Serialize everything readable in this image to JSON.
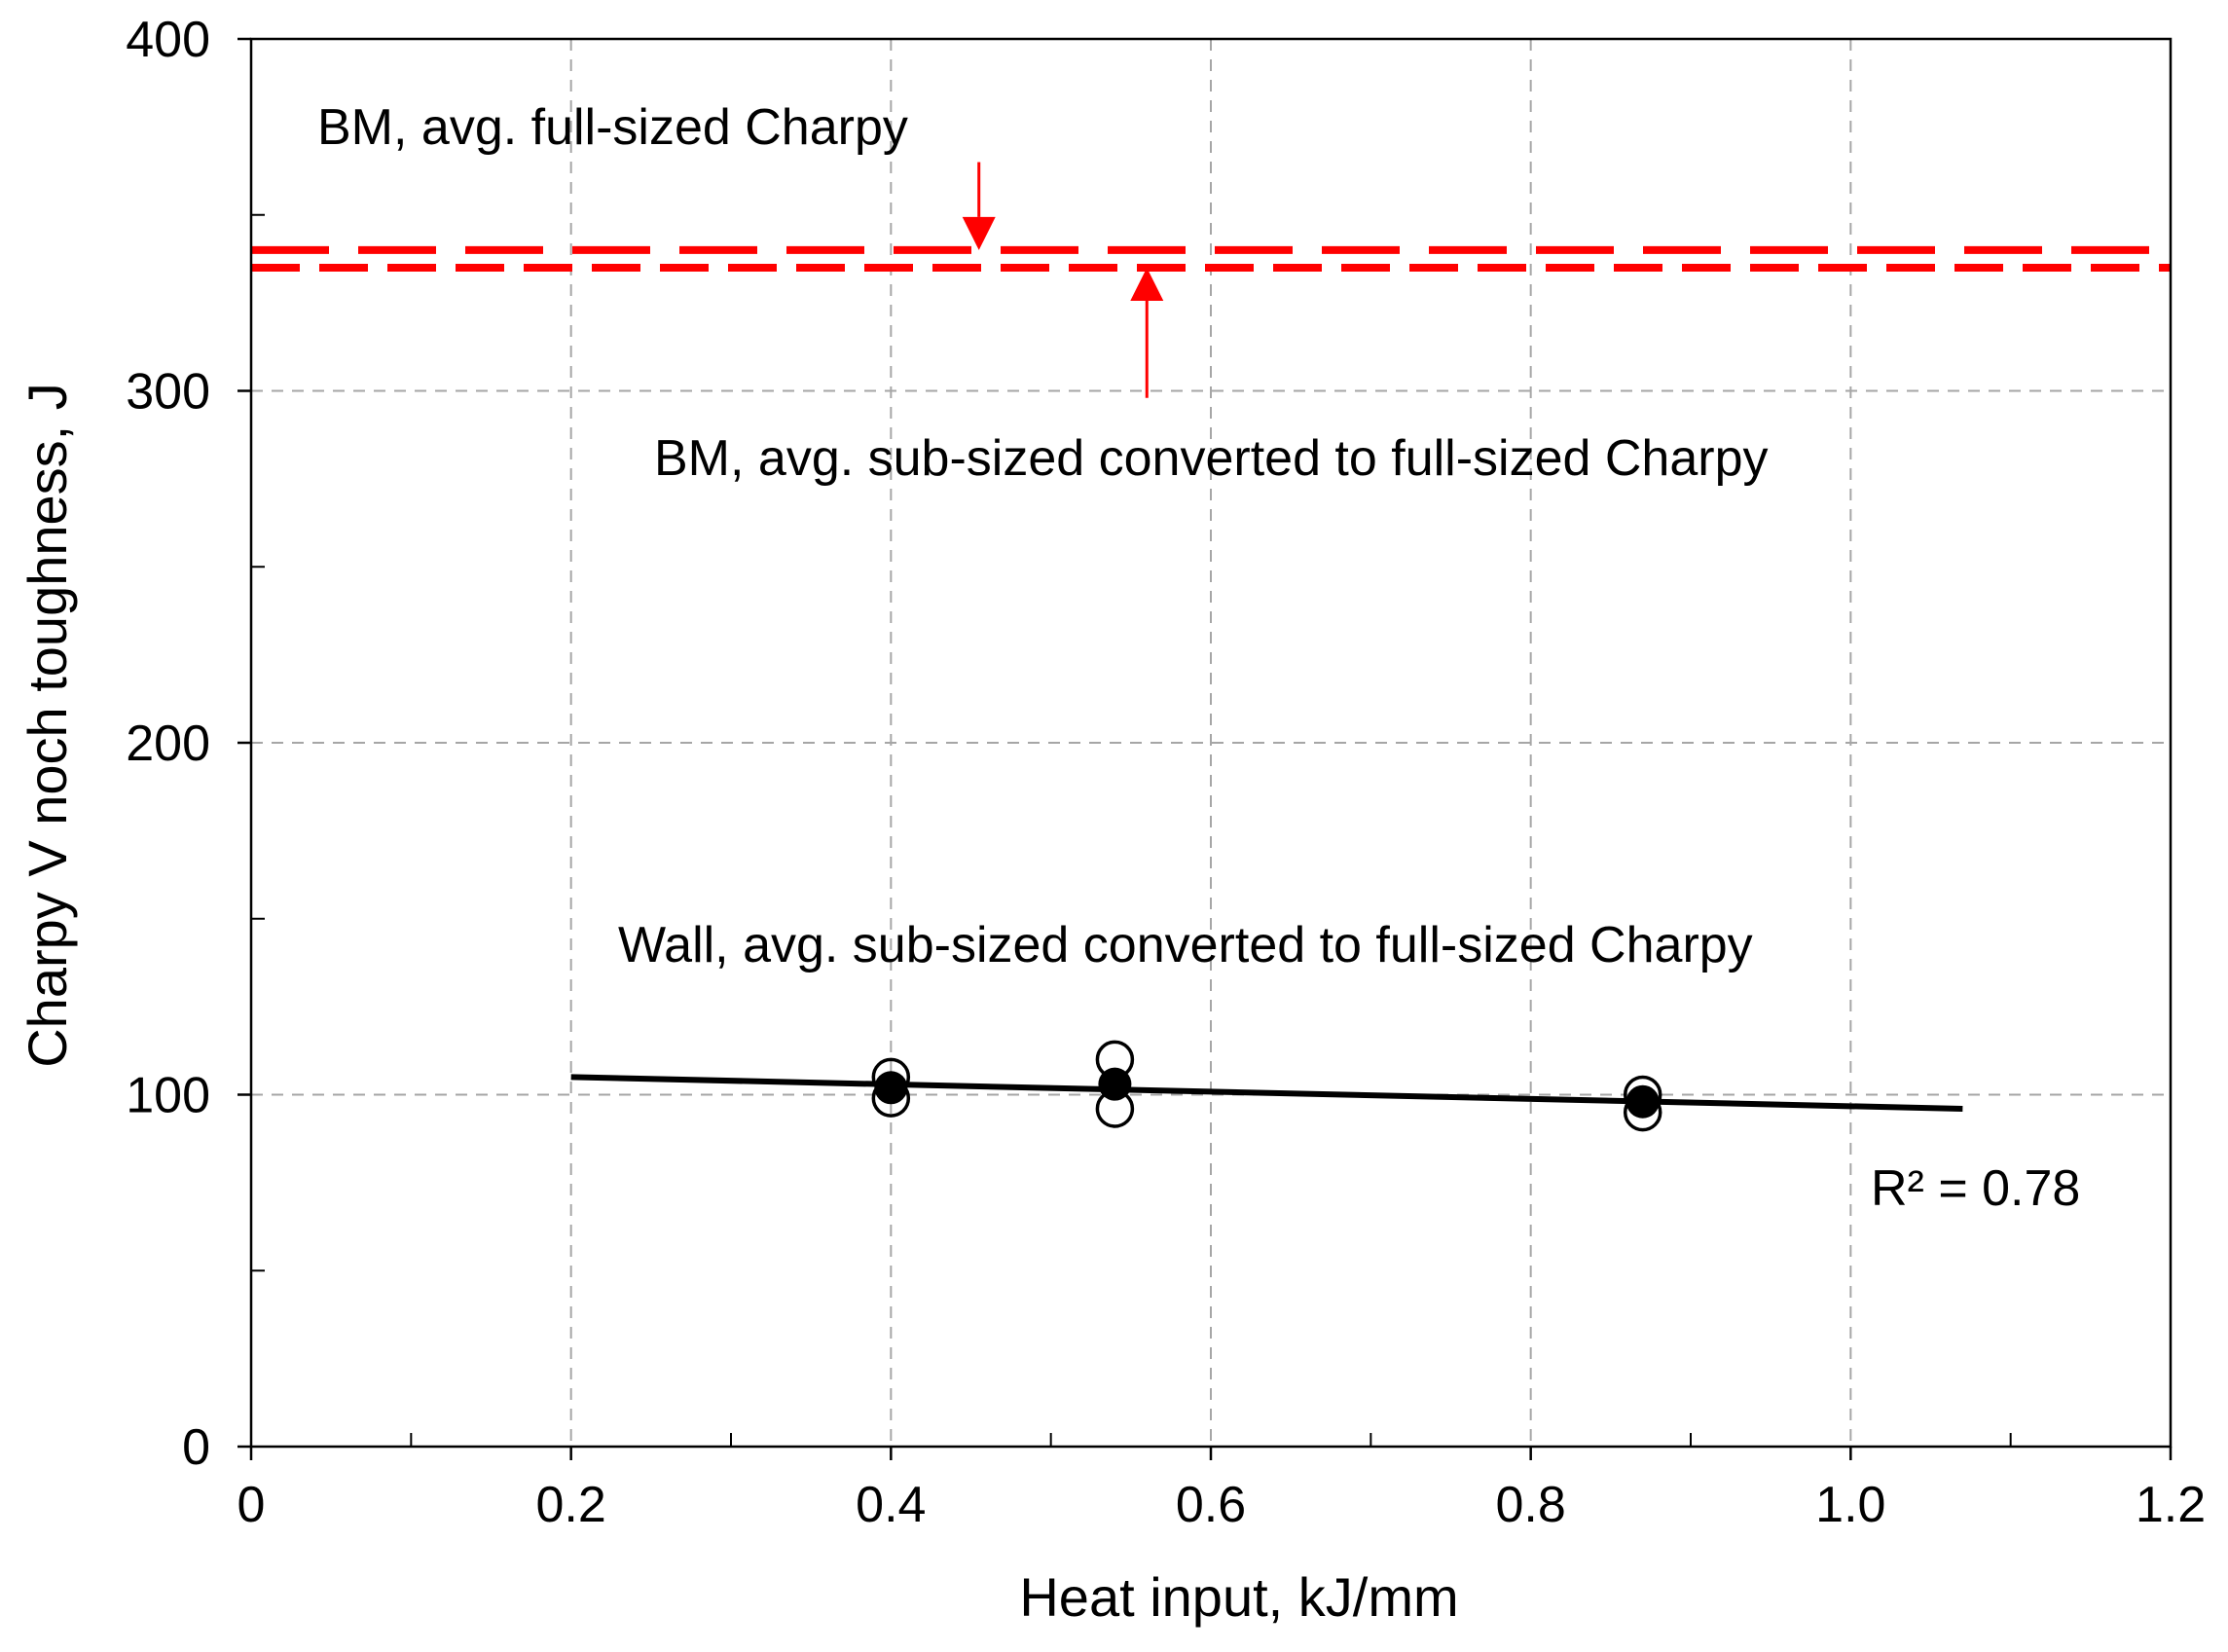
{
  "chart_data": {
    "type": "scatter",
    "xlabel": "Heat input, kJ/mm",
    "ylabel": "Charpy V noch toughness, J",
    "xlim": [
      0,
      1.2
    ],
    "ylim": [
      0,
      400
    ],
    "x_ticks": [
      0,
      0.2,
      0.4,
      0.6,
      0.8,
      1.0,
      1.2
    ],
    "x_tick_labels": [
      "0",
      "0.2",
      "0.4",
      "0.6",
      "0.8",
      "1.0",
      "1.2"
    ],
    "y_ticks": [
      0,
      100,
      200,
      300,
      400
    ],
    "y_tick_labels": [
      "0",
      "100",
      "200",
      "300",
      "400"
    ],
    "y_minor_ticks": [
      50,
      150,
      250,
      350
    ],
    "x_minor_ticks": [
      0.1,
      0.3,
      0.5,
      0.7,
      0.9,
      1.1
    ],
    "grid": true,
    "series": [
      {
        "marker": "open-circle",
        "points": [
          {
            "x": 0.4,
            "y": 105
          },
          {
            "x": 0.4,
            "y": 99
          },
          {
            "x": 0.54,
            "y": 110
          },
          {
            "x": 0.54,
            "y": 96
          },
          {
            "x": 0.87,
            "y": 100
          },
          {
            "x": 0.87,
            "y": 95
          }
        ]
      },
      {
        "marker": "filled-circle",
        "points": [
          {
            "x": 0.4,
            "y": 102
          },
          {
            "x": 0.54,
            "y": 103
          },
          {
            "x": 0.87,
            "y": 98
          }
        ]
      }
    ],
    "trendline": {
      "x": [
        0.2,
        1.07
      ],
      "y": [
        105,
        96
      ],
      "color": "#000000",
      "r_squared_label": "R² = 0.78"
    },
    "reference_lines": [
      {
        "y": 340,
        "color": "#ff0000",
        "style": "long-dash"
      },
      {
        "y": 335,
        "color": "#ff0000",
        "style": "short-dash"
      }
    ],
    "annotations": [
      {
        "text": "BM, avg. full-sized Charpy",
        "arrow_x": 0.455,
        "arrow_target_y": 340,
        "arrow_from_y": 365
      },
      {
        "text": "BM, avg. sub-sized converted to full-sized Charpy",
        "arrow_x": 0.56,
        "arrow_target_y": 335,
        "arrow_from_y": 298
      },
      {
        "text": "Wall, avg. sub-sized converted to full-sized Charpy"
      }
    ]
  }
}
